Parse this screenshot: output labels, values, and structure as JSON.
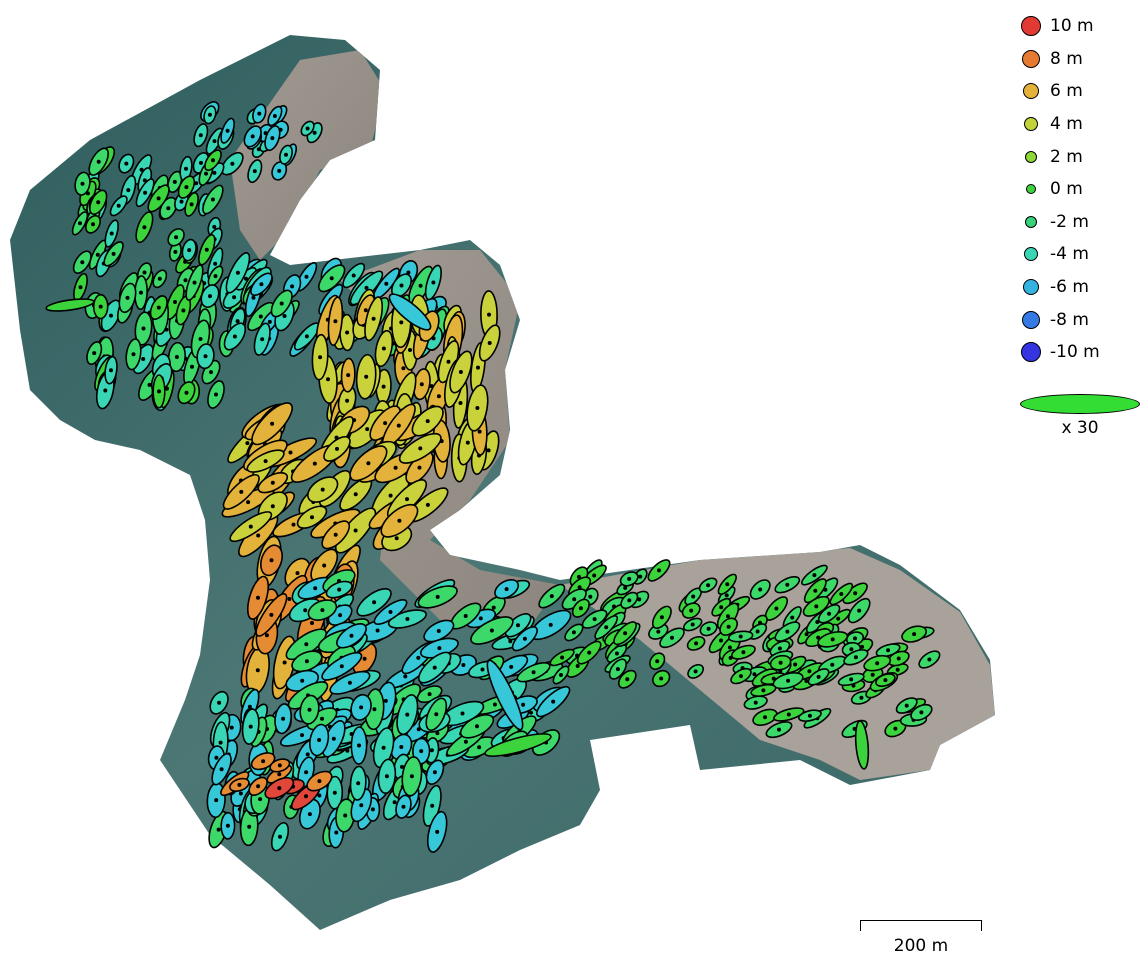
{
  "legend": {
    "items": [
      {
        "label": "10 m",
        "color": "#e03a33",
        "size": 20
      },
      {
        "label": "8 m",
        "color": "#e57b33",
        "size": 18
      },
      {
        "label": "6 m",
        "color": "#e2b23a",
        "size": 16
      },
      {
        "label": "4 m",
        "color": "#c2d23a",
        "size": 14
      },
      {
        "label": "2 m",
        "color": "#8ed93a",
        "size": 12
      },
      {
        "label": "0 m",
        "color": "#3cd43c",
        "size": 10
      },
      {
        "label": "-2 m",
        "color": "#38d27a",
        "size": 12
      },
      {
        "label": "-4 m",
        "color": "#38d6b4",
        "size": 14
      },
      {
        "label": "-6 m",
        "color": "#36b2e0",
        "size": 16
      },
      {
        "label": "-8 m",
        "color": "#3479e4",
        "size": 18
      },
      {
        "label": "-10 m",
        "color": "#3434e0",
        "size": 20
      }
    ]
  },
  "error_scale": {
    "label": "x 30",
    "color": "#33dd33"
  },
  "scalebar": {
    "label": "200 m"
  },
  "colors": {
    "sea": "#3c6b6b",
    "sea_light": "#587f7c",
    "land": "#9e968c",
    "land_light": "#b5ada3"
  }
}
